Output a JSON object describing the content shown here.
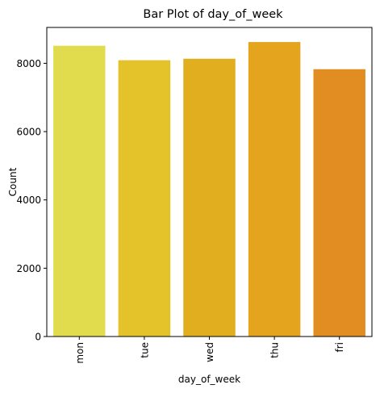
{
  "chart_data": {
    "type": "bar",
    "title": "Bar Plot of day_of_week",
    "xlabel": "day_of_week",
    "ylabel": "Count",
    "categories": [
      "mon",
      "tue",
      "wed",
      "thu",
      "fri"
    ],
    "values": [
      8514,
      8090,
      8134,
      8623,
      7827
    ],
    "colors": [
      "#e1dc4d",
      "#e3c329",
      "#e1ae20",
      "#e5a41d",
      "#e28d21"
    ],
    "ylim": [
      0,
      9050
    ],
    "yticks": [
      0,
      2000,
      4000,
      6000,
      8000
    ],
    "ytick_labels": [
      "0",
      "2000",
      "4000",
      "6000",
      "8000"
    ],
    "grid": false,
    "legend": "none"
  }
}
